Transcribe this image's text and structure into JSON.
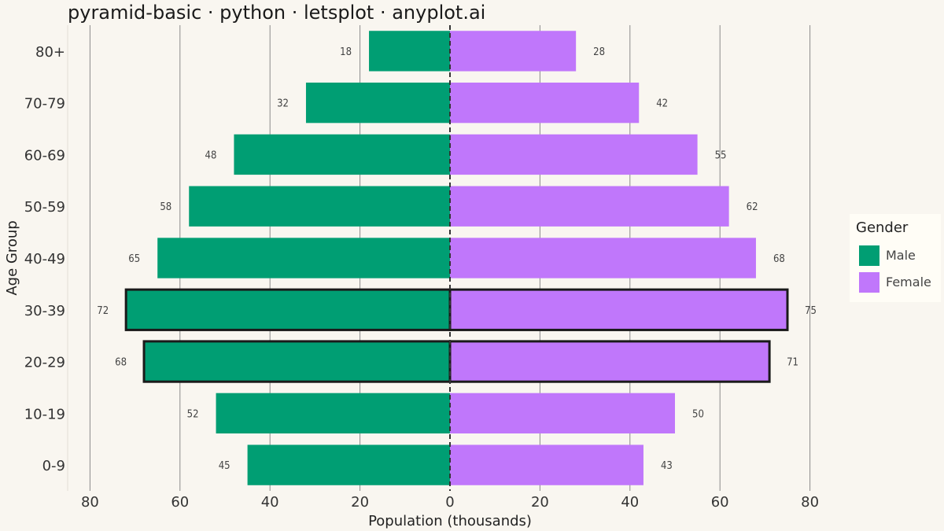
{
  "title": "pyramid-basic · python · letsplot · anyplot.ai",
  "colors": {
    "background": "#f9f6f0",
    "male": "#009e73",
    "female": "#c077fb",
    "highlight_outline": "#1a1a1a",
    "gridline": "#8a8a8a",
    "legend_background": "#fffdf6"
  },
  "legend": {
    "title": "Gender",
    "items": [
      {
        "label": "Male",
        "color": "#009e73"
      },
      {
        "label": "Female",
        "color": "#c077fb"
      }
    ]
  },
  "chart_data": {
    "type": "bar",
    "orientation": "horizontal-diverging",
    "title": "pyramid-basic · python · letsplot · anyplot.ai",
    "xlabel": "Population (thousands)",
    "ylabel": "Age Group",
    "xlim": [
      -80,
      80
    ],
    "x_ticks": [
      -80,
      -60,
      -40,
      -20,
      0,
      20,
      40,
      60,
      80
    ],
    "x_tick_labels": [
      "80",
      "60",
      "40",
      "20",
      "0",
      "20",
      "40",
      "60",
      "80"
    ],
    "categories": [
      "0-9",
      "10-19",
      "20-29",
      "30-39",
      "40-49",
      "50-59",
      "60-69",
      "70-79",
      "80+"
    ],
    "series": [
      {
        "name": "Male",
        "side": "left",
        "values": [
          45,
          52,
          68,
          72,
          65,
          58,
          48,
          32,
          18
        ]
      },
      {
        "name": "Female",
        "side": "right",
        "values": [
          43,
          50,
          71,
          75,
          68,
          62,
          55,
          42,
          28
        ]
      }
    ],
    "highlighted_categories": [
      "20-29",
      "30-39"
    ],
    "grid": "vertical major gridlines",
    "zero_line": "dashed",
    "legend_position": "right"
  }
}
